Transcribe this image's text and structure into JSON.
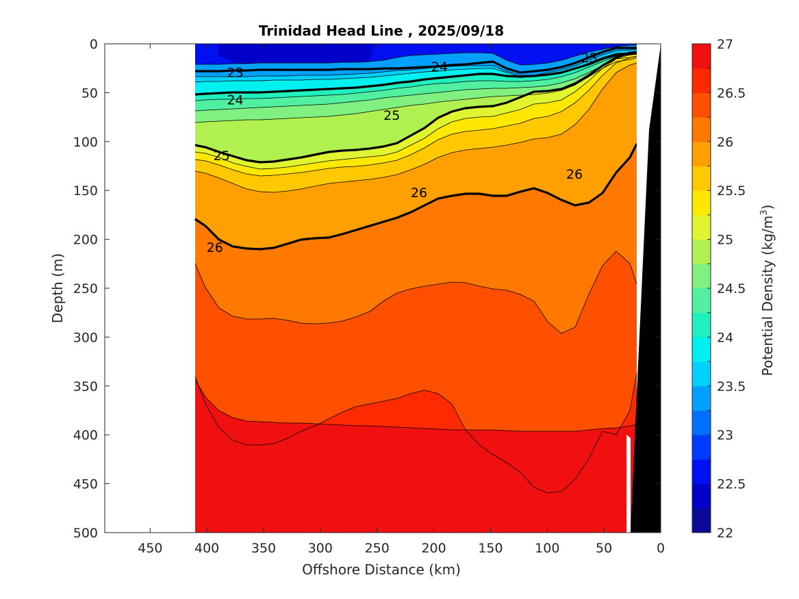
{
  "chart_data": {
    "type": "contour",
    "title": "Trinidad Head Line , 2025/09/18",
    "xlabel": "Offshore Distance (km)",
    "ylabel": "Depth (m)",
    "xlim": [
      490,
      0
    ],
    "ylim": [
      0,
      500
    ],
    "x_reversed": true,
    "y_reversed": true,
    "x_ticks": [
      450,
      400,
      350,
      300,
      250,
      200,
      150,
      100,
      50,
      0
    ],
    "y_ticks": [
      0,
      50,
      100,
      150,
      200,
      250,
      300,
      350,
      400,
      450,
      500
    ],
    "data_x_range_km": [
      410,
      20
    ],
    "colorbar": {
      "label": "Potential Density (kg/m",
      "label_superscript": "3",
      "label_suffix": ")",
      "min": 22,
      "max": 27,
      "step": 0.25,
      "tick_labels": [
        "22",
        "22.5",
        "23",
        "23.5",
        "24",
        "24.5",
        "25",
        "25.5",
        "26",
        "26.5",
        "27"
      ],
      "colors": [
        "#0a0a96",
        "#0000c8",
        "#0010f0",
        "#003cff",
        "#0070ff",
        "#00a0ff",
        "#00d0ff",
        "#00f0f0",
        "#20f0c0",
        "#50f0a0",
        "#80f080",
        "#b0f050",
        "#e0f530",
        "#ffe800",
        "#ffc800",
        "#ffa000",
        "#ff7800",
        "#ff5000",
        "#ff2a00",
        "#f01010"
      ]
    },
    "contour_labels": [
      {
        "text": "23",
        "x": 375,
        "y": 29
      },
      {
        "text": "24",
        "x": 375,
        "y": 57
      },
      {
        "text": "24",
        "x": 195,
        "y": 23
      },
      {
        "text": "25",
        "x": 387,
        "y": 114
      },
      {
        "text": "25",
        "x": 237,
        "y": 73
      },
      {
        "text": "25",
        "x": 63,
        "y": 14
      },
      {
        "text": "26",
        "x": 393,
        "y": 208
      },
      {
        "text": "26",
        "x": 213,
        "y": 152
      },
      {
        "text": "26",
        "x": 76,
        "y": 133
      }
    ],
    "bathymetry": "black wedge near shore, 0-20 km"
  }
}
